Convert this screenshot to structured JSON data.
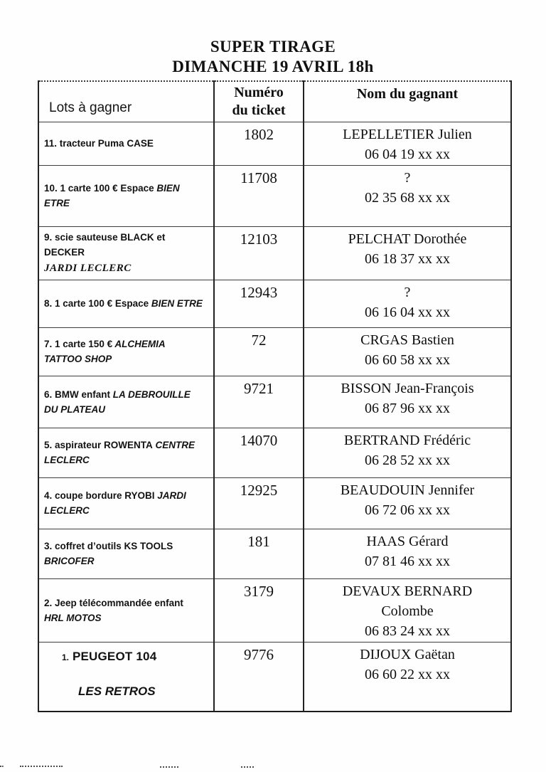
{
  "title": {
    "line1": "SUPER TIRAGE",
    "line2": "DIMANCHE 19 AVRIL 18h"
  },
  "table": {
    "headers": {
      "lots": "Lots à gagner",
      "ticket": "Numéro\ndu ticket",
      "winner": "Nom du gagnant"
    },
    "rows": [
      {
        "num": "11.",
        "prize": "tracteur Puma CASE",
        "brand": "",
        "ticket": "1802",
        "winner": "LEPELLETIER Julien",
        "phone": "06 04 19 xx xx"
      },
      {
        "num": "10.",
        "prize": "1 carte 100 € Espace",
        "brand": "BIEN\nETRE",
        "ticket": "11708",
        "winner": "?",
        "phone": "02 35 68 xx xx"
      },
      {
        "num": "9.",
        "prize": "scie sauteuse BLACK et DECKER",
        "brand": "\nJARDI LECLERC",
        "brand_serif": true,
        "ticket": "12103",
        "winner": "PELCHAT Dorothée",
        "phone": "06 18 37 xx xx"
      },
      {
        "num": "8.",
        "prize": "1 carte 100 € Espace",
        "brand": "BIEN ETRE",
        "ticket": "12943",
        "winner": "?",
        "phone": "06 16 04 xx xx"
      },
      {
        "num": "7.",
        "prize": "1 carte 150 €",
        "brand": "ALCHEMIA\nTATTOO SHOP",
        "ticket": "72",
        "winner": "CRGAS Bastien",
        "phone": "06 60 58 xx xx"
      },
      {
        "num": "6.",
        "prize": "BMW enfant",
        "brand": "LA DEBROUILLE\nDU PLATEAU",
        "ticket": "9721",
        "winner": "BISSON Jean-François",
        "phone": "06 87 96 xx xx"
      },
      {
        "num": "5.",
        "prize": "aspirateur ROWENTA",
        "brand": "CENTRE\nLECLERC",
        "ticket": "14070",
        "winner": "BERTRAND Frédéric",
        "phone": "06 28 52 xx xx"
      },
      {
        "num": "4.",
        "prize": "coupe bordure RYOBI",
        "brand": "JARDI\nLECLERC",
        "ticket": "12925",
        "winner": "BEAUDOUIN Jennifer",
        "phone": "06 72 06 xx xx"
      },
      {
        "num": "3.",
        "prize": "coffret d’outils KS TOOLS",
        "brand": "\nBRICOFER",
        "ticket": "181",
        "winner": "HAAS Gérard",
        "phone": "07 81 46 xx xx"
      },
      {
        "num": "2.",
        "prize": "Jeep télécommandée enfant",
        "brand": "\nHRL MOTOS",
        "ticket": "3179",
        "winner": "DEVAUX BERNARD\nColombe",
        "phone": "06 83 24 xx xx"
      },
      {
        "num": "1.",
        "prize": "PEUGEOT 104",
        "brand": "LES RETROS",
        "special": true,
        "ticket": "9776",
        "winner": "DIJOUX Gaëtan",
        "phone": "06 60 22 xx xx"
      }
    ]
  },
  "ink_color": "#141414",
  "paper_color": "#fefefe"
}
